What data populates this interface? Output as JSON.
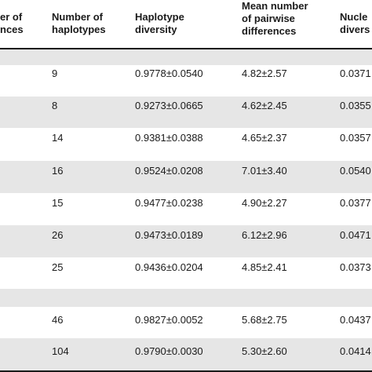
{
  "table": {
    "headers": {
      "col0": "er of\nnces",
      "col1": "Number of\nhaplotypes",
      "col2": "Haplotype\ndiversity",
      "col3": "Mean number\nof pairwise\ndifferences",
      "col4": "Nucle\ndivers"
    },
    "rows": [
      {
        "n_hap": "",
        "hap_div": "",
        "mpd": "",
        "nuc_div": ""
      },
      {
        "n_hap": "9",
        "hap_div": "0.9778±0.0540",
        "mpd": "4.82±2.57",
        "nuc_div": "0.0371"
      },
      {
        "n_hap": "8",
        "hap_div": "0.9273±0.0665",
        "mpd": "4.62±2.45",
        "nuc_div": "0.0355"
      },
      {
        "n_hap": "14",
        "hap_div": "0.9381±0.0388",
        "mpd": "4.65±2.37",
        "nuc_div": "0.0357"
      },
      {
        "n_hap": "16",
        "hap_div": "0.9524±0.0208",
        "mpd": "7.01±3.40",
        "nuc_div": "0.0540"
      },
      {
        "n_hap": "15",
        "hap_div": "0.9477±0.0238",
        "mpd": "4.90±2.27",
        "nuc_div": "0.0377"
      },
      {
        "n_hap": "26",
        "hap_div": "0.9473±0.0189",
        "mpd": "6.12±2.96",
        "nuc_div": "0.0471"
      },
      {
        "n_hap": "25",
        "hap_div": "0.9436±0.0204",
        "mpd": "4.85±2.41",
        "nuc_div": "0.0373"
      },
      {
        "n_hap": "",
        "hap_div": "",
        "mpd": "",
        "nuc_div": ""
      },
      {
        "n_hap": "46",
        "hap_div": "0.9827±0.0052",
        "mpd": "5.68±2.75",
        "nuc_div": "0.0437"
      },
      {
        "n_hap": "104",
        "hap_div": "0.9790±0.0030",
        "mpd": "5.30±2.60",
        "nuc_div": "0.0414"
      }
    ]
  }
}
